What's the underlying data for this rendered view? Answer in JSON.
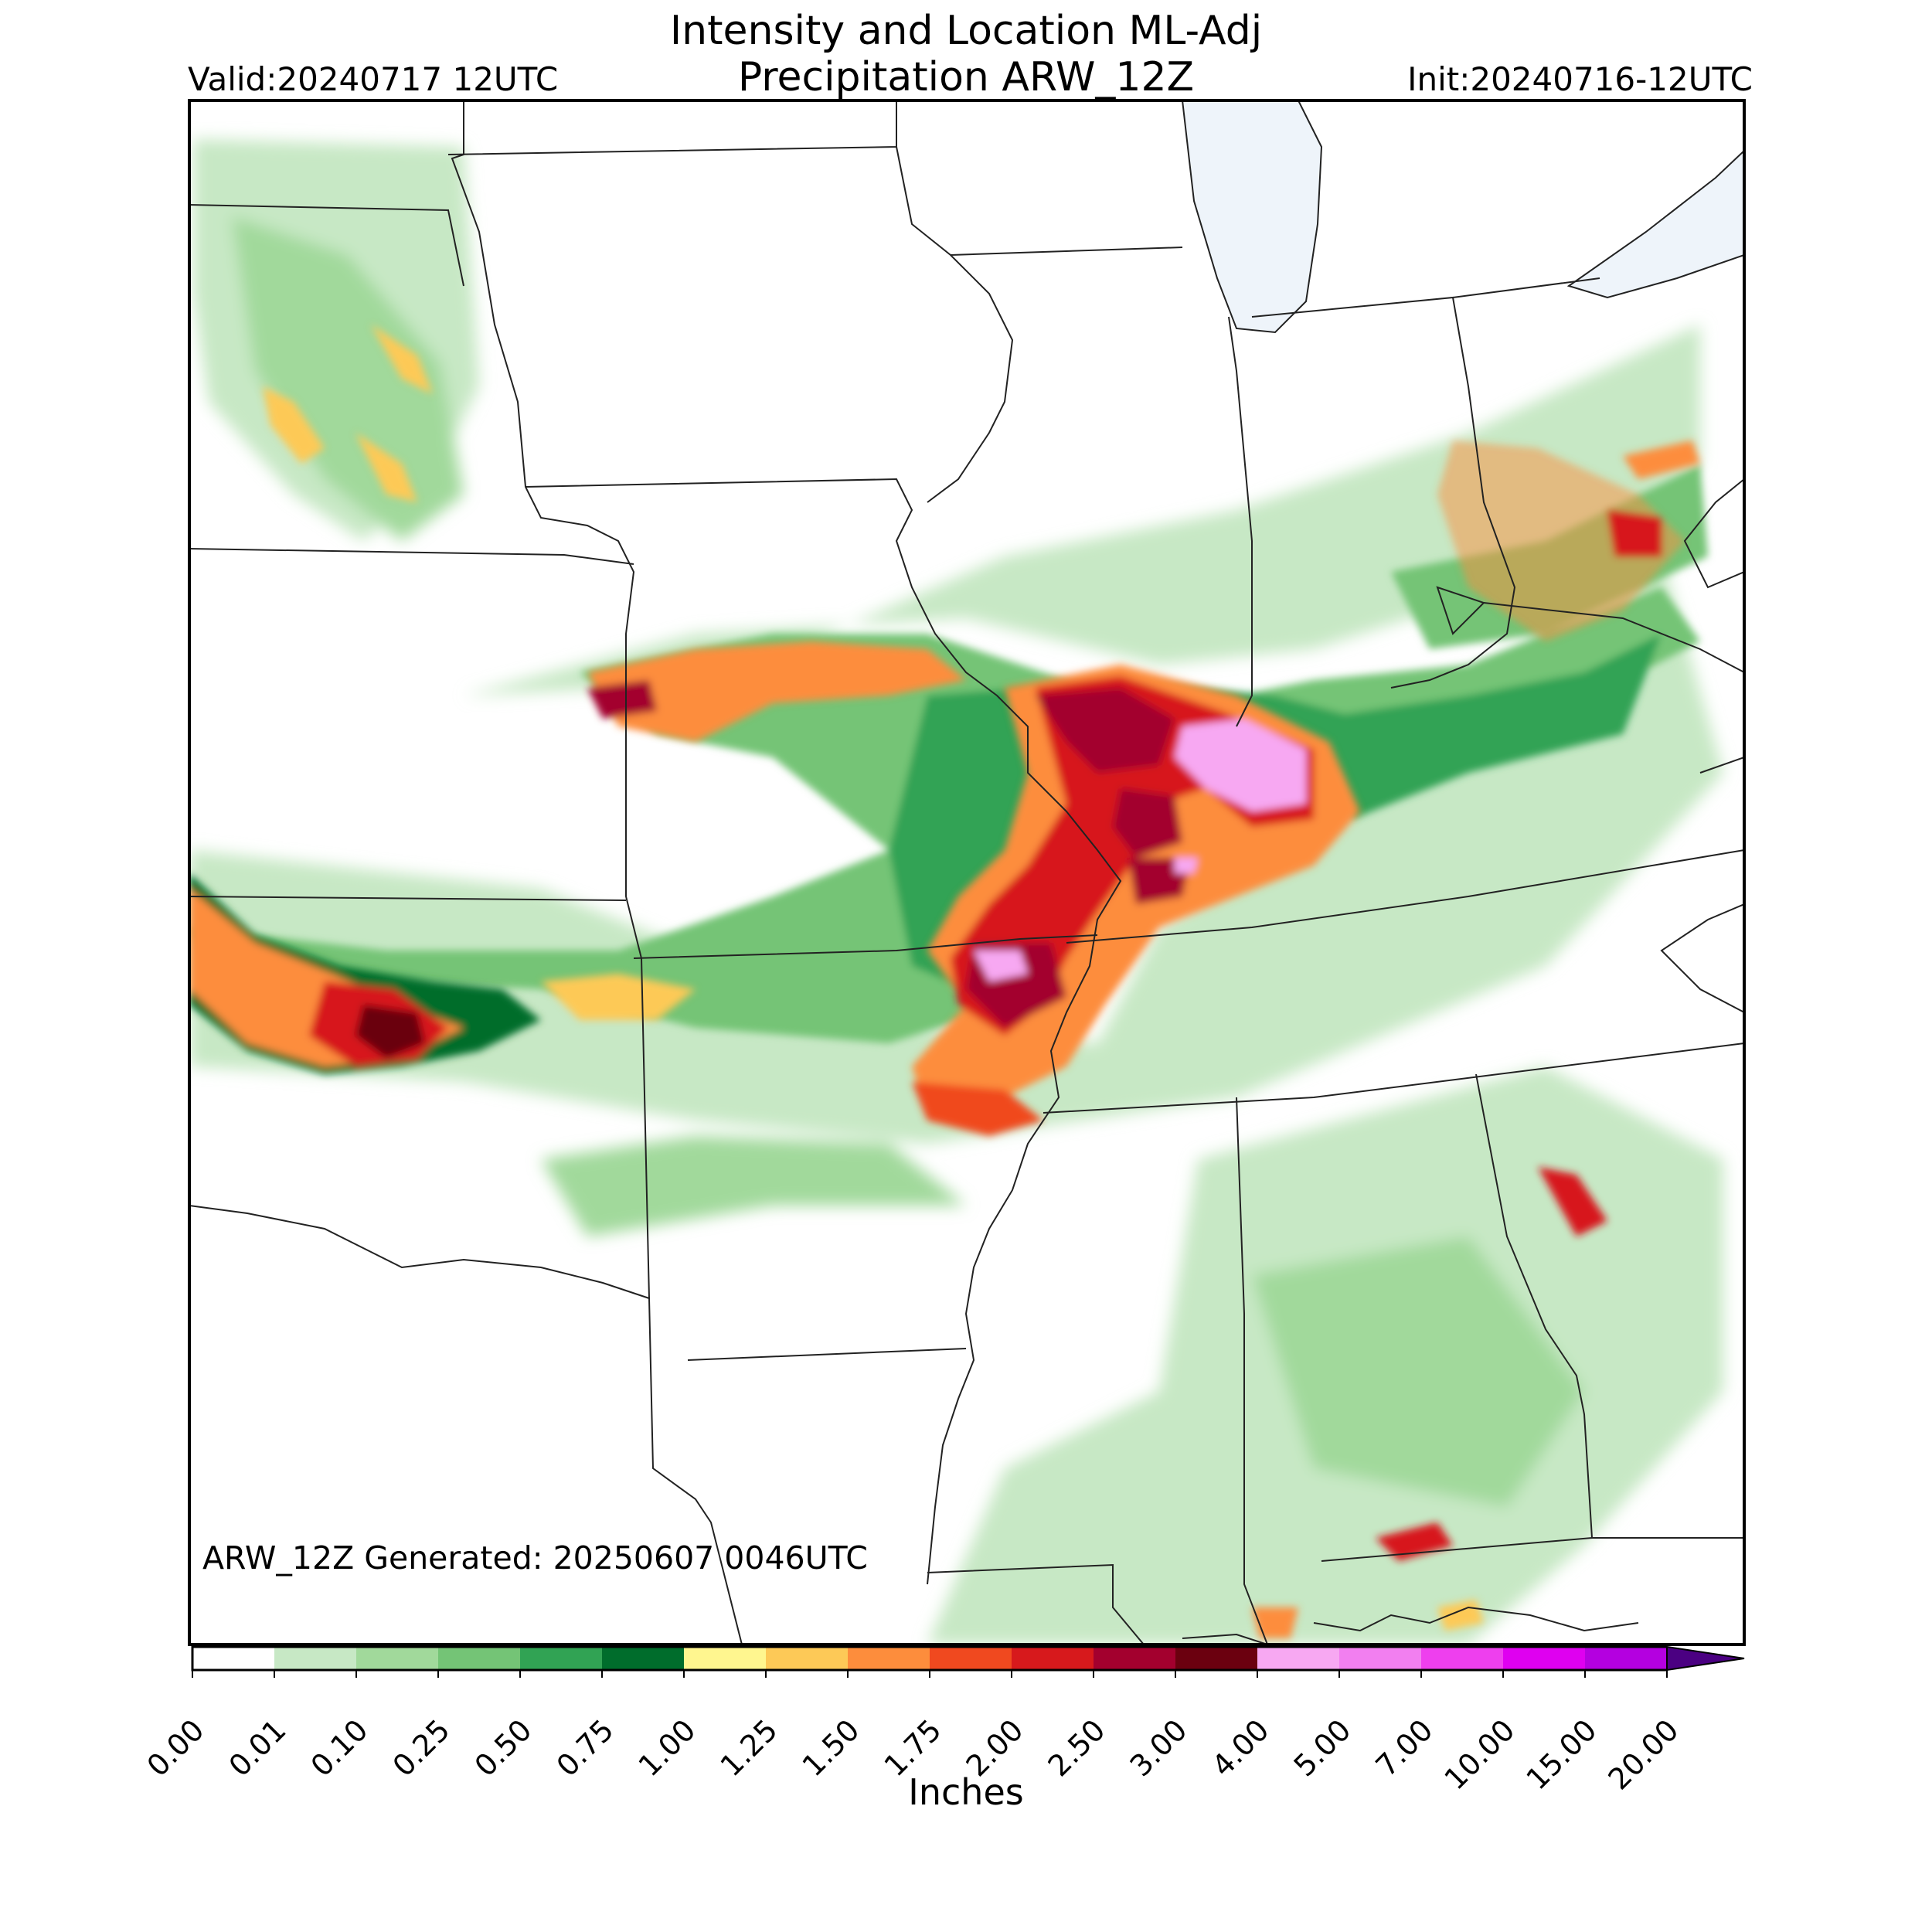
{
  "title_line1": "Intensity and Location ML-Adj",
  "title_line2": "Precipitation ARW_12Z",
  "valid_label": "Valid:20240717 12UTC",
  "init_label": "Init:20240716-12UTC",
  "generated_label": "ARW_12Z Generated: 20250607 0046UTC",
  "colorbar": {
    "units_label": "Inches",
    "ticks": [
      "0.00",
      "0.01",
      "0.10",
      "0.25",
      "0.50",
      "0.75",
      "1.00",
      "1.25",
      "1.50",
      "1.75",
      "2.00",
      "2.50",
      "3.00",
      "4.00",
      "5.00",
      "7.00",
      "10.00",
      "15.00",
      "20.00"
    ],
    "colors": [
      "#ffffff",
      "#c7e8c5",
      "#a1d99b",
      "#74c476",
      "#31a354",
      "#006d2c",
      "#fff68f",
      "#fdc957",
      "#fd8d3c",
      "#f0491f",
      "#d7191c",
      "#a3002e",
      "#6b000f",
      "#f7a8f2",
      "#f27ff0",
      "#ee3fee",
      "#df00f0",
      "#b400e0",
      "#8200c8"
    ],
    "extend_color": "#4b0082"
  },
  "legend": {
    "bins": [
      "0.00",
      "0.01",
      "0.10",
      "0.25",
      "0.50",
      "0.75",
      "1.00",
      "1.25",
      "1.50",
      "1.75",
      "2.00",
      "2.50",
      "3.00",
      "4.00",
      "5.00",
      "7.00",
      "10.00",
      "15.00",
      "20.00"
    ]
  }
}
